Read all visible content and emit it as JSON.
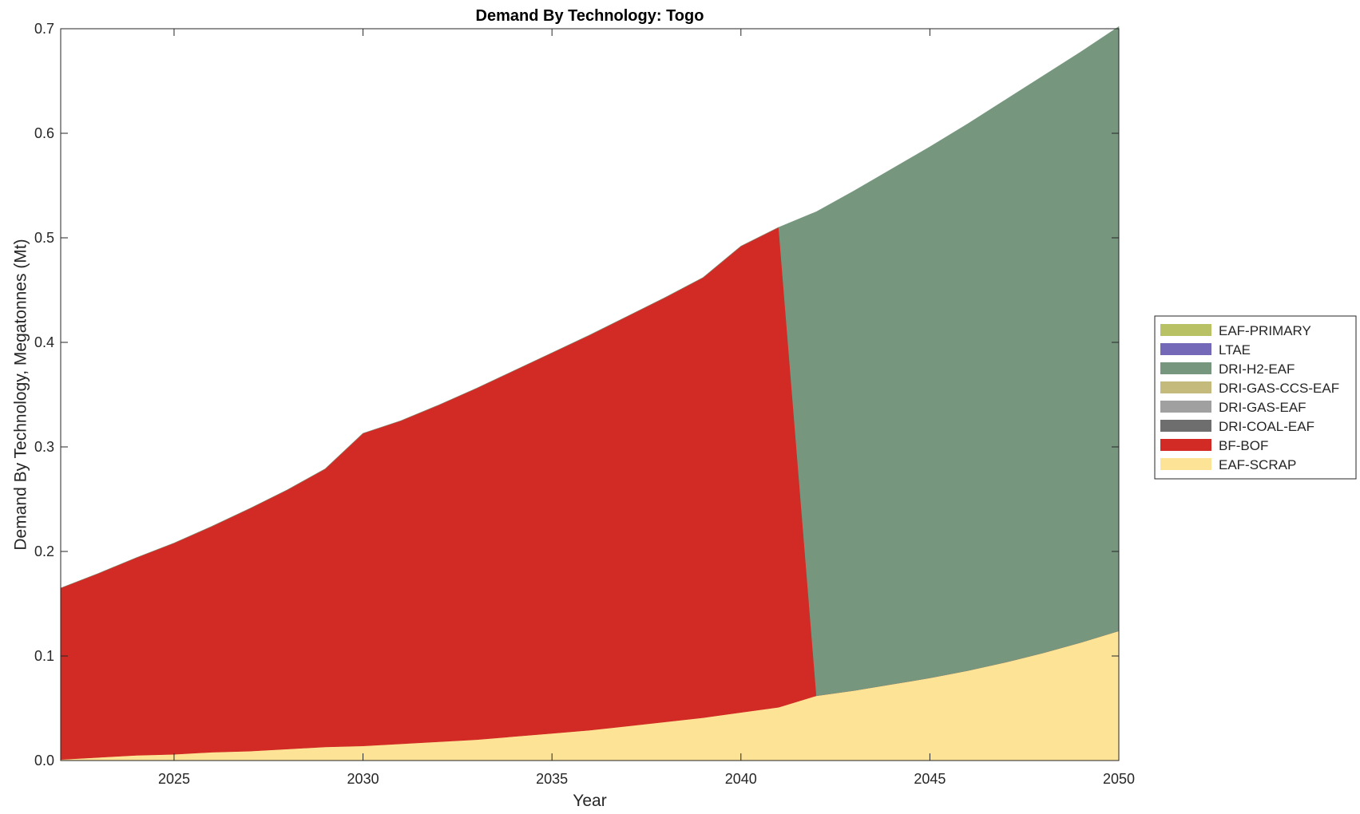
{
  "chart_data": {
    "type": "area",
    "stacked": true,
    "title": "Demand By Technology: Togo",
    "xlabel": "Year",
    "ylabel": "Demand By Technology, Megatonnes (Mt)",
    "xlim": [
      2022,
      2050
    ],
    "ylim": [
      0,
      0.7
    ],
    "xticks": [
      2025,
      2030,
      2035,
      2040,
      2045,
      2050
    ],
    "xtick_labels": [
      "2025",
      "2030",
      "2035",
      "2040",
      "2045",
      "2050"
    ],
    "yticks": [
      0,
      0.1,
      0.2,
      0.3,
      0.4,
      0.5,
      0.6,
      0.7
    ],
    "ytick_labels": [
      "0.0",
      "0.1",
      "0.2",
      "0.3",
      "0.4",
      "0.5",
      "0.6",
      "0.7"
    ],
    "grid": false,
    "legend_position": "outside-right",
    "x": [
      2022,
      2023,
      2024,
      2025,
      2026,
      2027,
      2028,
      2029,
      2030,
      2031,
      2032,
      2033,
      2034,
      2035,
      2036,
      2037,
      2038,
      2039,
      2040,
      2041,
      2042,
      2043,
      2044,
      2045,
      2046,
      2047,
      2048,
      2049,
      2050
    ],
    "series": [
      {
        "name": "EAF-SCRAP",
        "color": "#FDE396",
        "values": [
          0.001,
          0.003,
          0.005,
          0.006,
          0.008,
          0.009,
          0.011,
          0.013,
          0.014,
          0.016,
          0.018,
          0.02,
          0.023,
          0.026,
          0.029,
          0.033,
          0.037,
          0.041,
          0.046,
          0.051,
          0.062,
          0.067,
          0.073,
          0.079,
          0.086,
          0.094,
          0.103,
          0.113,
          0.124
        ]
      },
      {
        "name": "BF-BOF",
        "color": "#D22A24",
        "values": [
          0.164,
          0.176,
          0.189,
          0.202,
          0.216,
          0.232,
          0.248,
          0.266,
          0.299,
          0.309,
          0.322,
          0.336,
          0.35,
          0.364,
          0.378,
          0.392,
          0.406,
          0.421,
          0.446,
          0.459,
          0,
          0,
          0,
          0,
          0,
          0,
          0,
          0,
          0
        ]
      },
      {
        "name": "DRI-COAL-EAF",
        "color": "#6E6E6E",
        "values": [
          0,
          0,
          0,
          0,
          0,
          0,
          0,
          0,
          0,
          0,
          0,
          0,
          0,
          0,
          0,
          0,
          0,
          0,
          0,
          0,
          0,
          0,
          0,
          0,
          0,
          0,
          0,
          0,
          0
        ]
      },
      {
        "name": "DRI-GAS-EAF",
        "color": "#A0A0A0",
        "values": [
          0,
          0,
          0,
          0,
          0,
          0,
          0,
          0,
          0,
          0,
          0,
          0,
          0,
          0,
          0,
          0,
          0,
          0,
          0,
          0,
          0,
          0,
          0,
          0,
          0,
          0,
          0,
          0,
          0
        ]
      },
      {
        "name": "DRI-GAS-CCS-EAF",
        "color": "#C4BA7C",
        "values": [
          0,
          0,
          0,
          0,
          0,
          0,
          0,
          0,
          0,
          0,
          0,
          0,
          0,
          0,
          0,
          0,
          0,
          0,
          0,
          0,
          0,
          0,
          0,
          0,
          0,
          0,
          0,
          0,
          0
        ]
      },
      {
        "name": "DRI-H2-EAF",
        "color": "#76977D",
        "values": [
          0,
          0,
          0,
          0,
          0,
          0,
          0,
          0,
          0,
          0,
          0,
          0,
          0,
          0,
          0,
          0,
          0,
          0,
          0,
          0,
          0.463,
          0.478,
          0.493,
          0.508,
          0.523,
          0.538,
          0.552,
          0.565,
          0.578
        ]
      },
      {
        "name": "LTAE",
        "color": "#7468B8",
        "values": [
          0,
          0,
          0,
          0,
          0,
          0,
          0,
          0,
          0,
          0,
          0,
          0,
          0,
          0,
          0,
          0,
          0,
          0,
          0,
          0,
          0,
          0,
          0,
          0,
          0,
          0,
          0,
          0,
          0
        ]
      },
      {
        "name": "EAF-PRIMARY",
        "color": "#B9C165",
        "values": [
          0,
          0,
          0,
          0,
          0,
          0,
          0,
          0,
          0,
          0,
          0,
          0,
          0,
          0,
          0,
          0,
          0,
          0,
          0,
          0,
          0,
          0,
          0,
          0,
          0,
          0,
          0,
          0,
          0
        ]
      }
    ],
    "legend_order": [
      "EAF-PRIMARY",
      "LTAE",
      "DRI-H2-EAF",
      "DRI-GAS-CCS-EAF",
      "DRI-GAS-EAF",
      "DRI-COAL-EAF",
      "BF-BOF",
      "EAF-SCRAP"
    ]
  }
}
